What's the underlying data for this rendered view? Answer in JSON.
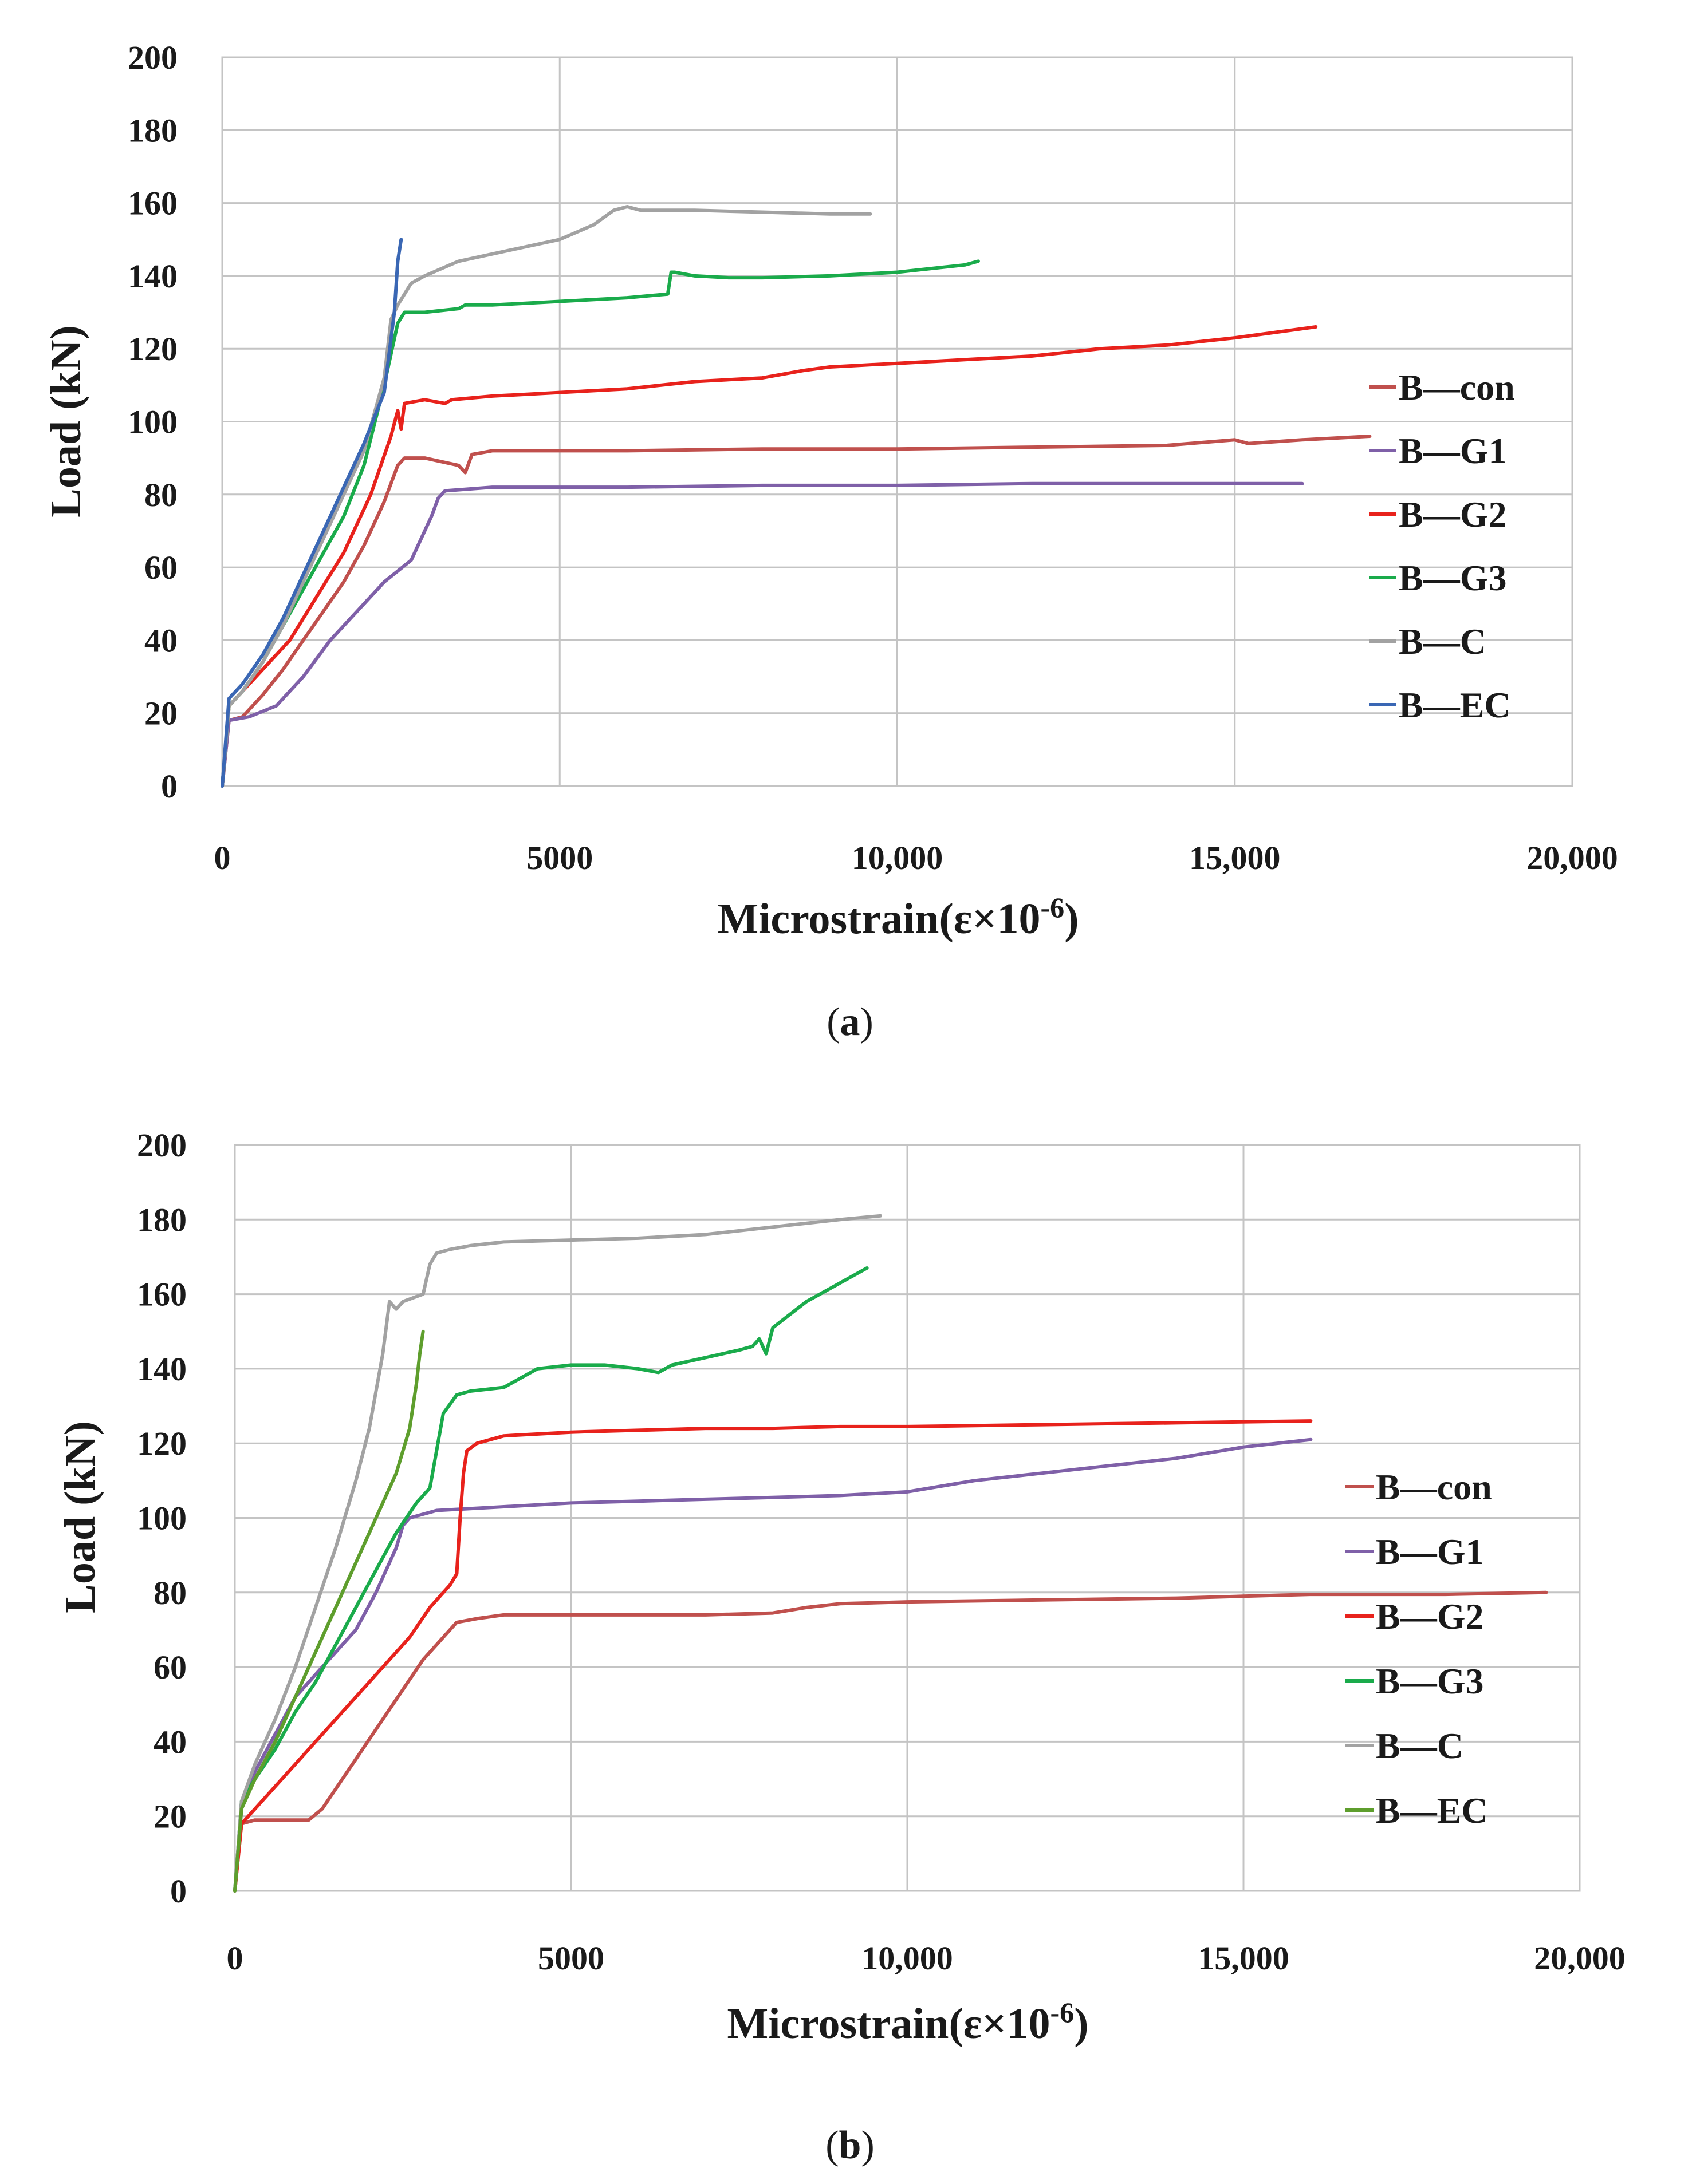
{
  "chart_data": [
    {
      "type": "line",
      "panel": "a",
      "caption_open": "(",
      "caption_letter": "a",
      "caption_close": ")",
      "xlabel": "Microstrain(ε×10",
      "xlabel_exp": "-6",
      "xlabel_close": ")",
      "ylabel": "Load (kN)",
      "xlim": [
        0,
        20000
      ],
      "ylim": [
        0,
        200
      ],
      "xticks": [
        0,
        5000,
        10000,
        15000,
        20000
      ],
      "xtick_labels": [
        "0",
        "5000",
        "10,000",
        "15,000",
        "20,000"
      ],
      "yticks": [
        0,
        20,
        40,
        60,
        80,
        100,
        120,
        140,
        160,
        180,
        200
      ],
      "ytick_labels": [
        "0",
        "20",
        "40",
        "60",
        "80",
        "100",
        "120",
        "140",
        "160",
        "180",
        "200"
      ],
      "legend_position": "right",
      "series": [
        {
          "name": "B—con",
          "color": "#c0504d",
          "x": [
            0,
            100,
            300,
            600,
            900,
            1200,
            1500,
            1800,
            2100,
            2400,
            2600,
            2700,
            3000,
            3500,
            3600,
            3700,
            4000,
            6000,
            8000,
            10000,
            12000,
            14000,
            15000,
            15200,
            16000,
            17000
          ],
          "y": [
            0,
            18,
            19,
            25,
            32,
            40,
            48,
            56,
            66,
            78,
            88,
            90,
            90,
            88,
            86,
            91,
            92,
            92,
            92.5,
            92.5,
            93,
            93.5,
            95,
            94,
            95,
            96
          ]
        },
        {
          "name": "B—G1",
          "color": "#7f60a8",
          "x": [
            0,
            100,
            400,
            800,
            1200,
            1600,
            2000,
            2400,
            2800,
            3000,
            3100,
            3200,
            3300,
            4000,
            6000,
            8000,
            10000,
            12000,
            14000,
            16000
          ],
          "y": [
            0,
            18,
            19,
            22,
            30,
            40,
            48,
            56,
            62,
            70,
            74,
            79,
            81,
            82,
            82,
            82.5,
            82.5,
            83,
            83,
            83
          ]
        },
        {
          "name": "B—G2",
          "color": "#e8221c",
          "x": [
            0,
            100,
            300,
            600,
            1000,
            1400,
            1800,
            2200,
            2500,
            2600,
            2650,
            2700,
            3000,
            3300,
            3400,
            4000,
            5000,
            6000,
            7000,
            8000,
            8600,
            9000,
            10000,
            11000,
            12000,
            13000,
            14000,
            15000,
            16200
          ],
          "y": [
            0,
            22,
            26,
            32,
            40,
            52,
            64,
            80,
            96,
            103,
            98,
            105,
            106,
            105,
            106,
            107,
            108,
            109,
            111,
            112,
            114,
            115,
            116,
            117,
            118,
            120,
            121,
            123,
            126
          ]
        },
        {
          "name": "B—G3",
          "color": "#1aab4b",
          "x": [
            0,
            100,
            300,
            600,
            900,
            1200,
            1500,
            1800,
            2100,
            2400,
            2600,
            2700,
            3000,
            3500,
            3600,
            4000,
            5000,
            6000,
            6600,
            6650,
            6700,
            7000,
            7500,
            8000,
            9000,
            10000,
            11000,
            11200
          ],
          "y": [
            0,
            22,
            26,
            34,
            44,
            54,
            64,
            74,
            88,
            110,
            127,
            130,
            130,
            131,
            132,
            132,
            133,
            134,
            135,
            141,
            141,
            140,
            139.5,
            139.5,
            140,
            141,
            143,
            144
          ]
        },
        {
          "name": "B—C",
          "color": "#a2a2a2",
          "x": [
            0,
            100,
            300,
            600,
            900,
            1200,
            1500,
            1800,
            2100,
            2400,
            2500,
            2600,
            2800,
            3000,
            3500,
            4000,
            4500,
            5000,
            5500,
            5800,
            6000,
            6200,
            7000,
            8000,
            9000,
            9600
          ],
          "y": [
            0,
            22,
            26,
            34,
            44,
            56,
            68,
            80,
            92,
            112,
            128,
            132,
            138,
            140,
            144,
            146,
            148,
            150,
            154,
            158,
            159,
            158,
            158,
            157.5,
            157,
            157
          ]
        },
        {
          "name": "B—EC",
          "color": "#3a67b4",
          "x": [
            0,
            100,
            300,
            600,
            900,
            1200,
            1500,
            1800,
            2100,
            2400,
            2550,
            2600,
            2650
          ],
          "y": [
            0,
            24,
            28,
            36,
            46,
            58,
            70,
            82,
            94,
            108,
            130,
            144,
            150
          ]
        }
      ]
    },
    {
      "type": "line",
      "panel": "b",
      "caption_open": "(",
      "caption_letter": "b",
      "caption_close": ")",
      "xlabel": "Microstrain(ε×10",
      "xlabel_exp": "-6",
      "xlabel_close": ")",
      "ylabel": "Load (kN)",
      "xlim": [
        0,
        20000
      ],
      "ylim": [
        0,
        200
      ],
      "xticks": [
        0,
        5000,
        10000,
        15000,
        20000
      ],
      "xtick_labels": [
        "0",
        "5000",
        "10,000",
        "15,000",
        "20,000"
      ],
      "yticks": [
        0,
        20,
        40,
        60,
        80,
        100,
        120,
        140,
        160,
        180,
        200
      ],
      "ytick_labels": [
        "0",
        "20",
        "40",
        "60",
        "80",
        "100",
        "120",
        "140",
        "160",
        "180",
        "200"
      ],
      "legend_position": "right",
      "series": [
        {
          "name": "B—con",
          "color": "#c0504d",
          "x": [
            0,
            100,
            300,
            600,
            900,
            1100,
            1300,
            1600,
            1900,
            2200,
            2500,
            2800,
            3100,
            3300,
            3600,
            4000,
            5000,
            6000,
            7000,
            8000,
            8500,
            9000,
            10000,
            12000,
            14000,
            15000,
            16000,
            18000,
            19500
          ],
          "y": [
            0,
            18,
            19,
            19,
            19,
            19,
            22,
            30,
            38,
            46,
            54,
            62,
            68,
            72,
            73,
            74,
            74,
            74,
            74,
            74.5,
            76,
            77,
            77.5,
            78,
            78.5,
            79,
            79.5,
            79.5,
            80
          ]
        },
        {
          "name": "B—G1",
          "color": "#7f60a8",
          "x": [
            0,
            100,
            300,
            600,
            900,
            1200,
            1500,
            1800,
            2100,
            2300,
            2400,
            2500,
            2600,
            2800,
            3000,
            4000,
            5000,
            6000,
            7000,
            8000,
            9000,
            10000,
            11000,
            12000,
            13000,
            14000,
            15000,
            16000
          ],
          "y": [
            0,
            22,
            32,
            42,
            52,
            58,
            64,
            70,
            80,
            88,
            92,
            98,
            100,
            101,
            102,
            103,
            104,
            104.5,
            105,
            105.5,
            106,
            107,
            110,
            112,
            114,
            116,
            119,
            121
          ]
        },
        {
          "name": "B—G2",
          "color": "#e8221c",
          "x": [
            0,
            100,
            300,
            600,
            1000,
            1400,
            1800,
            2200,
            2600,
            2900,
            3200,
            3300,
            3350,
            3400,
            3450,
            3600,
            4000,
            5000,
            6000,
            7000,
            8000,
            9000,
            10000,
            12000,
            14000,
            16000
          ],
          "y": [
            0,
            18,
            22,
            28,
            36,
            44,
            52,
            60,
            68,
            76,
            82,
            85,
            100,
            112,
            118,
            120,
            122,
            123,
            123.5,
            124,
            124,
            124.5,
            124.5,
            125,
            125.5,
            126
          ]
        },
        {
          "name": "B—G3",
          "color": "#1aab4b",
          "x": [
            0,
            100,
            300,
            600,
            900,
            1200,
            1500,
            1800,
            2100,
            2400,
            2700,
            2900,
            3000,
            3100,
            3300,
            3500,
            4000,
            4500,
            5000,
            5500,
            6000,
            6300,
            6500,
            7000,
            7500,
            7700,
            7800,
            7900,
            8000,
            8500,
            9000,
            9400
          ],
          "y": [
            0,
            24,
            30,
            38,
            48,
            56,
            66,
            76,
            86,
            96,
            104,
            108,
            118,
            128,
            133,
            134,
            135,
            140,
            141,
            141,
            140,
            139,
            141,
            143,
            145,
            146,
            148,
            144,
            151,
            158,
            163,
            167
          ]
        },
        {
          "name": "B—C",
          "color": "#a2a2a2",
          "x": [
            0,
            100,
            300,
            600,
            900,
            1200,
            1500,
            1800,
            2000,
            2100,
            2200,
            2300,
            2400,
            2500,
            2800,
            2900,
            3000,
            3200,
            3500,
            4000,
            5000,
            6000,
            7000,
            8000,
            9000,
            9600
          ],
          "y": [
            0,
            24,
            34,
            46,
            60,
            76,
            92,
            110,
            124,
            134,
            144,
            158,
            156,
            158,
            160,
            168,
            171,
            172,
            173,
            174,
            174.5,
            175,
            176,
            178,
            180,
            181
          ]
        },
        {
          "name": "B—EC",
          "color": "#5e9e2d",
          "x": [
            0,
            100,
            300,
            600,
            900,
            1200,
            1500,
            1800,
            2100,
            2400,
            2600,
            2700,
            2750,
            2800
          ],
          "y": [
            0,
            22,
            30,
            40,
            52,
            64,
            76,
            88,
            100,
            112,
            124,
            136,
            144,
            150
          ]
        }
      ]
    }
  ]
}
